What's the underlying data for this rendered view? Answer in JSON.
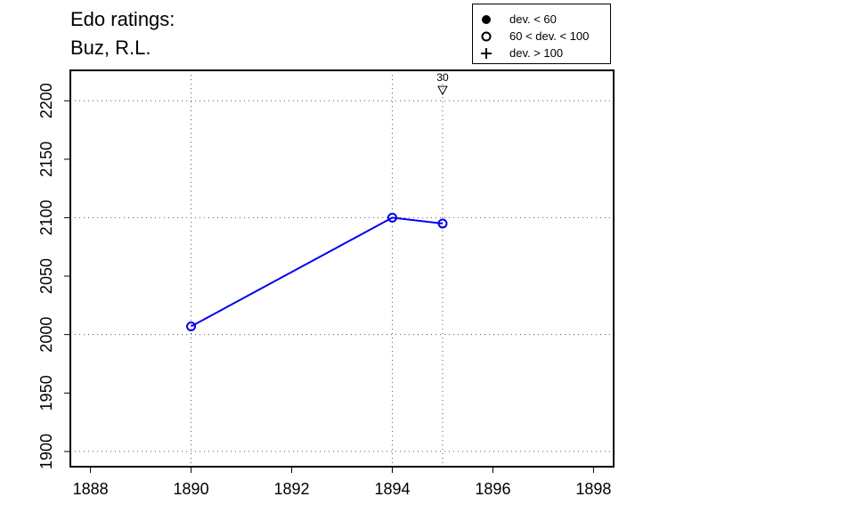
{
  "chart_data": {
    "type": "line",
    "title_lines": [
      "Edo ratings:",
      "Buz, R.L."
    ],
    "xlabel": "",
    "ylabel": "",
    "xlim": [
      1887.6,
      1898.4
    ],
    "ylim": [
      1887,
      2226
    ],
    "x_ticks": [
      1888,
      1890,
      1892,
      1894,
      1896,
      1898
    ],
    "y_ticks": [
      1900,
      1950,
      2000,
      2050,
      2100,
      2150,
      2200
    ],
    "x_grid": [
      1890,
      1894,
      1895
    ],
    "y_grid": [
      1900,
      2000,
      2100,
      2200
    ],
    "grid": "dotted",
    "legend_position": "top-right",
    "legend": [
      {
        "label": "dev. < 60",
        "symbol": "filled-circle"
      },
      {
        "label": "60 < dev. < 100",
        "symbol": "open-circle"
      },
      {
        "label": "dev. > 100",
        "symbol": "plus"
      }
    ],
    "series": [
      {
        "color": "#0000ee",
        "points": [
          {
            "x": 1890,
            "y": 2007,
            "symbol": "open-circle"
          },
          {
            "x": 1894,
            "y": 2100,
            "symbol": "open-circle"
          },
          {
            "x": 1895,
            "y": 2095,
            "symbol": "open-circle"
          }
        ]
      }
    ],
    "annotations": [
      {
        "x": 1895,
        "label": "30",
        "marker": "down-triangle"
      }
    ]
  }
}
